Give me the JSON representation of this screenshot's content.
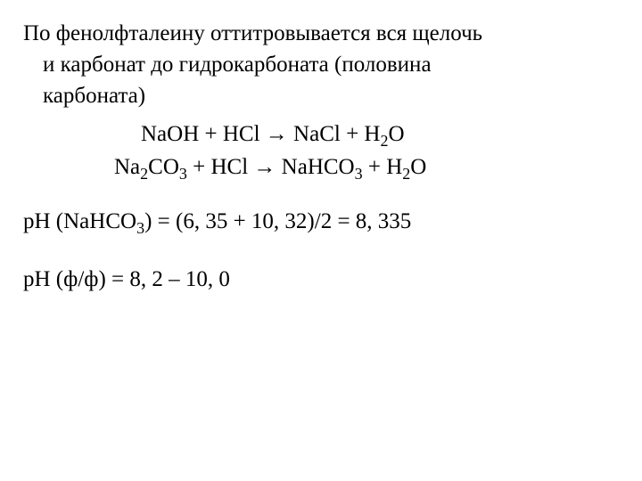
{
  "text": {
    "line1": "По фенолфталеину оттитровывается вся щелочь",
    "line2": "и карбонат до гидрокарбоната (половина",
    "line3": "карбоната)"
  },
  "equations": {
    "eq1": {
      "lhs1": "NaOH + HCl ",
      "arrow": "→",
      "rhs1": " NaCl + H",
      "sub1": "2",
      "rhs2": "O"
    },
    "eq2": {
      "p1": "Na",
      "s1": "2",
      "p2": "CO",
      "s2": "3",
      "p3": " + HCl ",
      "arrow": "→",
      "p4": " NaHCO",
      "s3": "3",
      "p5": " + H",
      "s4": "2",
      "p6": "O"
    }
  },
  "ph1": {
    "p1": "рН (NaHCO",
    "s1": "3",
    "p2": ") = (6, 35 + 10, 32)/2 = 8, 335"
  },
  "ph2": {
    "text": "рН (ф/ф) = 8, 2 – 10, 0"
  },
  "style": {
    "fontsize": "25px",
    "color": "#000000",
    "background": "#ffffff"
  }
}
